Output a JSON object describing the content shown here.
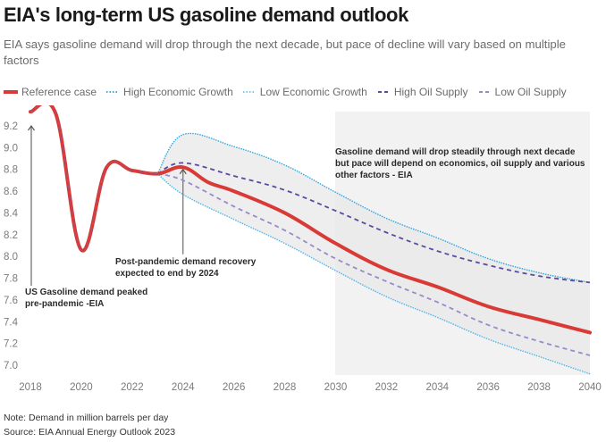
{
  "header": {
    "title": "EIA's long-term US gasoline demand outlook",
    "subtitle": "EIA says gasoline demand will drop through the next decade, but pace of decline will vary based on multiple factors"
  },
  "legend": [
    {
      "label": "Reference case",
      "style": "solid",
      "color": "#d93a35"
    },
    {
      "label": "High Economic Growth",
      "style": "dotted",
      "color": "#3aa9e0"
    },
    {
      "label": "Low Economic Growth",
      "style": "dotted",
      "color": "#7dc7ee"
    },
    {
      "label": "High Oil Supply",
      "style": "dashed",
      "color": "#5b4a9e"
    },
    {
      "label": "Low Oil Supply",
      "style": "dashed",
      "color": "#9a89c9"
    }
  ],
  "footer": {
    "note": "Note: Demand in million barrels per day",
    "source": "Source: EIA Annual Energy Outlook 2023"
  },
  "chart_data": {
    "type": "line",
    "title": "EIA's long-term US gasoline demand outlook",
    "xlabel": "",
    "ylabel": "Demand (million barrels per day)",
    "xlim": [
      2018,
      2040
    ],
    "ylim": [
      6.9,
      9.35
    ],
    "x_ticks": [
      2018,
      2020,
      2022,
      2024,
      2026,
      2028,
      2030,
      2032,
      2034,
      2036,
      2038,
      2040
    ],
    "x_tick_labels": [
      "2018",
      "2020",
      "2022",
      "2024",
      "2026",
      "2028",
      "2030",
      "2032",
      "2034",
      "2036",
      "2038",
      "2040"
    ],
    "y_ticks": [
      7.0,
      7.2,
      7.4,
      7.6,
      7.8,
      8.0,
      8.2,
      8.4,
      8.6,
      8.8,
      9.0,
      9.2
    ],
    "y_tick_labels": [
      "7.0",
      "7.2",
      "7.4",
      "7.6",
      "7.8",
      "8.0",
      "8.2",
      "8.4",
      "8.6",
      "8.8",
      "9.0",
      "9.2"
    ],
    "grid": false,
    "legend_position": "top-left",
    "highlight_region": {
      "x_start": 2030,
      "x_end": 2040,
      "color": "#f2f2f2"
    },
    "range_band": {
      "upper_series": "High Economic Growth",
      "lower_series": "Low Economic Growth",
      "color": "#e8e8e8"
    },
    "series": [
      {
        "name": "Reference case",
        "color": "#d93a35",
        "style": "solid",
        "x": [
          2018,
          2019,
          2020,
          2021,
          2022,
          2023,
          2024,
          2025,
          2026,
          2028,
          2030,
          2032,
          2034,
          2036,
          2038,
          2040
        ],
        "values": [
          9.33,
          9.31,
          8.06,
          8.82,
          8.79,
          8.76,
          8.82,
          8.68,
          8.6,
          8.4,
          8.12,
          7.88,
          7.72,
          7.54,
          7.42,
          7.3
        ]
      },
      {
        "name": "High Economic Growth",
        "color": "#3aa9e0",
        "style": "dotted",
        "x": [
          2023,
          2024,
          2026,
          2028,
          2030,
          2032,
          2034,
          2036,
          2038,
          2040
        ],
        "values": [
          8.76,
          9.12,
          9.01,
          8.84,
          8.59,
          8.35,
          8.17,
          7.98,
          7.85,
          7.76
        ]
      },
      {
        "name": "Low Economic Growth",
        "color": "#5ab8e8",
        "style": "dotted",
        "x": [
          2023,
          2024,
          2026,
          2028,
          2030,
          2032,
          2034,
          2036,
          2038,
          2040
        ],
        "values": [
          8.76,
          8.57,
          8.34,
          8.12,
          7.87,
          7.63,
          7.44,
          7.24,
          7.08,
          6.92
        ]
      },
      {
        "name": "High Oil Supply",
        "color": "#5b4a9e",
        "style": "dashed",
        "x": [
          2023,
          2024,
          2026,
          2028,
          2030,
          2032,
          2034,
          2036,
          2038,
          2040
        ],
        "values": [
          8.76,
          8.86,
          8.74,
          8.61,
          8.42,
          8.22,
          8.05,
          7.92,
          7.82,
          7.76
        ]
      },
      {
        "name": "Low Oil Supply",
        "color": "#9a89c9",
        "style": "dashed",
        "x": [
          2023,
          2024,
          2026,
          2028,
          2030,
          2032,
          2034,
          2036,
          2038,
          2040
        ],
        "values": [
          8.76,
          8.7,
          8.46,
          8.24,
          7.98,
          7.77,
          7.58,
          7.37,
          7.22,
          7.09
        ]
      }
    ],
    "annotations": [
      {
        "id": "peak",
        "lines": [
          "US Gasoline demand peaked",
          "pre-pandemic -EIA"
        ],
        "arrow_x": 2018,
        "arrow_from_y": 7.73,
        "arrow_to_y": 9.2
      },
      {
        "id": "recovery",
        "lines": [
          "Post-pandemic demand recovery",
          "expected to end by 2024"
        ],
        "arrow_x": 2024,
        "arrow_from_y": 8.02,
        "arrow_to_y": 8.8
      },
      {
        "id": "outlook",
        "lines": [
          "Gasoline demand will drop steadily through next decade",
          "but pace will depend on economics, oil supply and various",
          "other factors - EIA"
        ]
      }
    ]
  }
}
